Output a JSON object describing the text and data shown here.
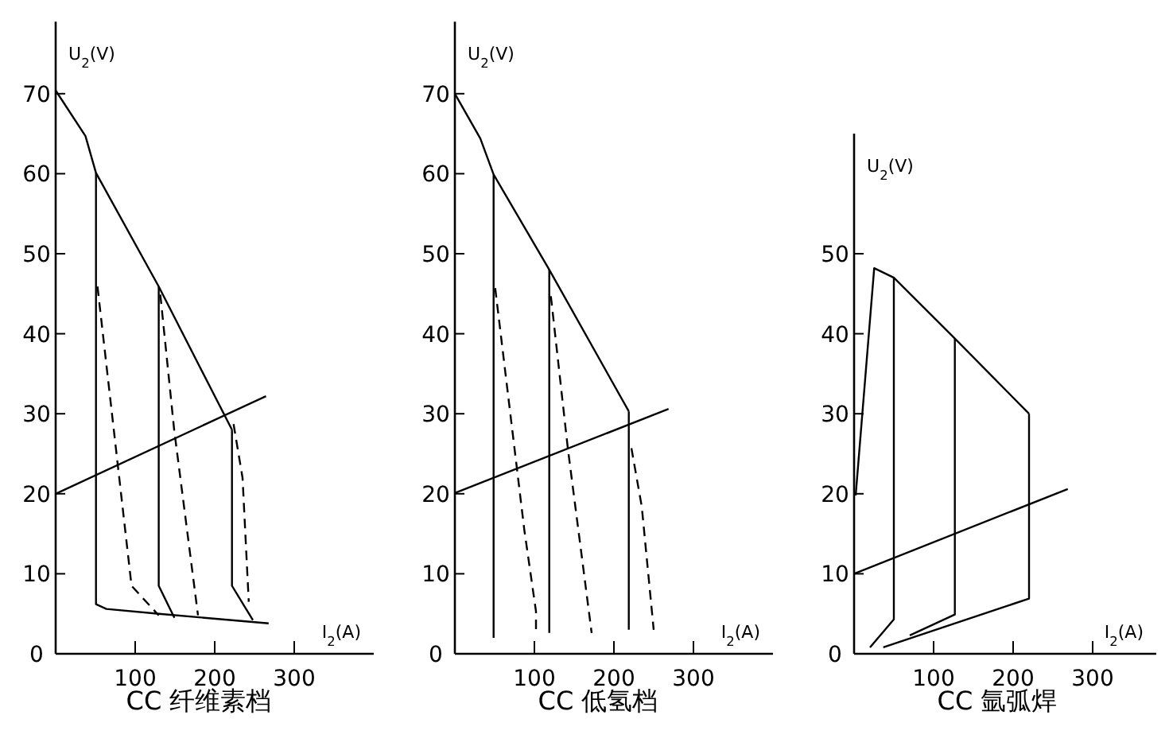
{
  "chart_data": [
    {
      "type": "line",
      "title": "CC 纤维素档",
      "xlabel": "I$_{2}$(A)",
      "ylabel": "U$_{2}$(V)",
      "xlim": [
        0,
        400
      ],
      "ylim": [
        0,
        79
      ],
      "xticks": [
        100,
        200,
        300
      ],
      "yticks": [
        0,
        10,
        20,
        30,
        40,
        50,
        60,
        70
      ],
      "series": [
        {
          "color": "#000000",
          "line_style": "solid",
          "x": [
            0,
            37.5,
            50.7,
            129.6,
            221.7
          ],
          "values": [
            70.4,
            64.7,
            60.1,
            45.9,
            28
          ]
        },
        {
          "color": "#000000",
          "line_style": "solid",
          "x": [
            50.7,
            50.7,
            63.8,
            130,
            267.8
          ],
          "values": [
            60.1,
            6.2,
            5.6,
            5,
            3.8
          ]
        },
        {
          "color": "#000000",
          "line_style": "solid",
          "x": [
            129.6,
            129.6,
            149.3
          ],
          "values": [
            45.9,
            8.5,
            4.5
          ]
        },
        {
          "color": "#000000",
          "line_style": "solid",
          "x": [
            221.7,
            221.7,
            248
          ],
          "values": [
            28,
            8.5,
            4.2
          ]
        },
        {
          "color": "#000000",
          "line_style": "dashed",
          "x": [
            52.6,
            95.4,
            129.6
          ],
          "values": [
            45.9,
            8.5,
            4.8
          ]
        },
        {
          "color": "#000000",
          "line_style": "dashed",
          "x": [
            131.6,
            149,
            179
          ],
          "values": [
            44.9,
            28,
            4.8
          ]
        },
        {
          "color": "#000000",
          "line_style": "dashed",
          "x": [
            223.7,
            235,
            242.8
          ],
          "values": [
            28.7,
            22,
            6.5
          ]
        },
        {
          "color": "#000000",
          "line_style": "solid",
          "x": [
            0,
            264.5
          ],
          "values": [
            20,
            32.2
          ]
        }
      ]
    },
    {
      "type": "line",
      "title": "CC 低氢档",
      "xlabel": "I$_{2}$(A)",
      "ylabel": "U$_{2}$(V)",
      "xlim": [
        0,
        400
      ],
      "ylim": [
        0,
        79
      ],
      "xticks": [
        100,
        200,
        300
      ],
      "yticks": [
        0,
        10,
        20,
        30,
        40,
        50,
        60,
        70
      ],
      "series": [
        {
          "color": "#000000",
          "line_style": "solid",
          "x": [
            0,
            32,
            48.7,
            118.7,
            218.7
          ],
          "values": [
            70,
            64.4,
            59.9,
            48,
            30.3
          ]
        },
        {
          "color": "#000000",
          "line_style": "solid",
          "x": [
            48.7,
            48.7
          ],
          "values": [
            59.9,
            2
          ]
        },
        {
          "color": "#000000",
          "line_style": "solid",
          "x": [
            118.7,
            118.7
          ],
          "values": [
            48,
            2.6
          ]
        },
        {
          "color": "#000000",
          "line_style": "solid",
          "x": [
            218.7,
            218.7
          ],
          "values": [
            30.3,
            3
          ]
        },
        {
          "color": "#000000",
          "line_style": "dashed",
          "x": [
            50.7,
            87.3,
            102,
            102
          ],
          "values": [
            45.7,
            15.5,
            5.3,
            2.6
          ]
        },
        {
          "color": "#000000",
          "line_style": "dashed",
          "x": [
            120.7,
            142,
            172
          ],
          "values": [
            44.7,
            25.7,
            2.6
          ]
        },
        {
          "color": "#000000",
          "line_style": "dashed",
          "x": [
            222,
            235,
            250
          ],
          "values": [
            25.7,
            18.4,
            3
          ]
        },
        {
          "color": "#000000",
          "line_style": "solid",
          "x": [
            0,
            268.7
          ],
          "values": [
            20.1,
            30.6
          ]
        }
      ]
    },
    {
      "type": "line",
      "title": "CC 氩弧焊",
      "xlabel": "I$_{2}$(A)",
      "ylabel": "U$_{2}$(V)",
      "xlim": [
        0,
        380
      ],
      "ylim": [
        0,
        65
      ],
      "xticks": [
        100,
        200,
        300
      ],
      "yticks": [
        0,
        10,
        20,
        30,
        40,
        50
      ],
      "series": [
        {
          "color": "#000000",
          "line_style": "solid",
          "x": [
            2,
            25.3,
            50,
            126.7,
            220
          ],
          "values": [
            19.8,
            48.2,
            47,
            39.4,
            30
          ]
        },
        {
          "color": "#000000",
          "line_style": "solid",
          "x": [
            50,
            50,
            20
          ],
          "values": [
            47,
            4.3,
            0.8
          ]
        },
        {
          "color": "#000000",
          "line_style": "solid",
          "x": [
            126.7,
            126.7,
            70
          ],
          "values": [
            39.4,
            4.9,
            2.3
          ]
        },
        {
          "color": "#000000",
          "line_style": "solid",
          "x": [
            220,
            220,
            36.7
          ],
          "values": [
            30,
            6.9,
            0.8
          ]
        },
        {
          "color": "#000000",
          "line_style": "solid",
          "x": [
            0,
            268.7
          ],
          "values": [
            10,
            20.6
          ]
        }
      ]
    }
  ]
}
